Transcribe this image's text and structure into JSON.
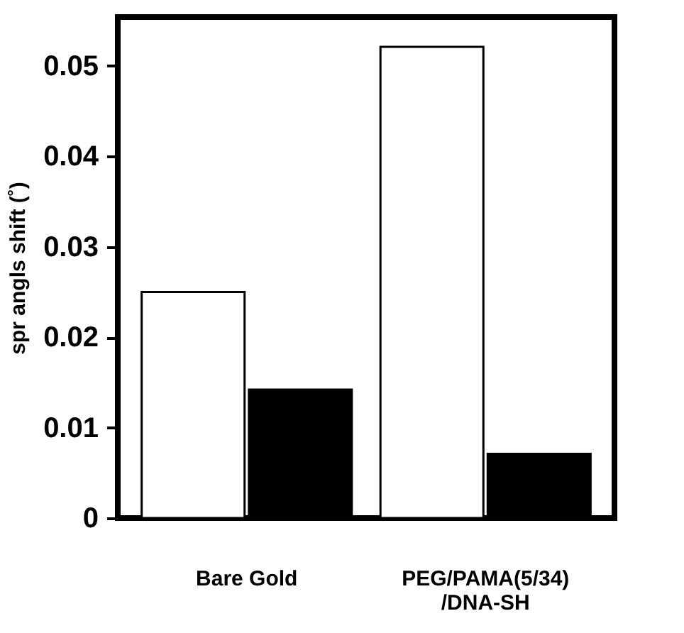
{
  "chart_data": {
    "type": "bar",
    "ylabel": "spr angls shift (˚)",
    "categories": [
      "Bare Gold",
      "PEG/PAMA(5/34)\n/DNA-SH"
    ],
    "series": [
      {
        "color": "#ffffff",
        "values": [
          0.025,
          0.0521
        ]
      },
      {
        "color": "#000000",
        "values": [
          0.0142,
          0.0071
        ]
      }
    ],
    "ylim": [
      0,
      0.0554
    ],
    "yticks": [
      0,
      0.01,
      0.02,
      0.03,
      0.04,
      0.05
    ],
    "grid": false
  }
}
